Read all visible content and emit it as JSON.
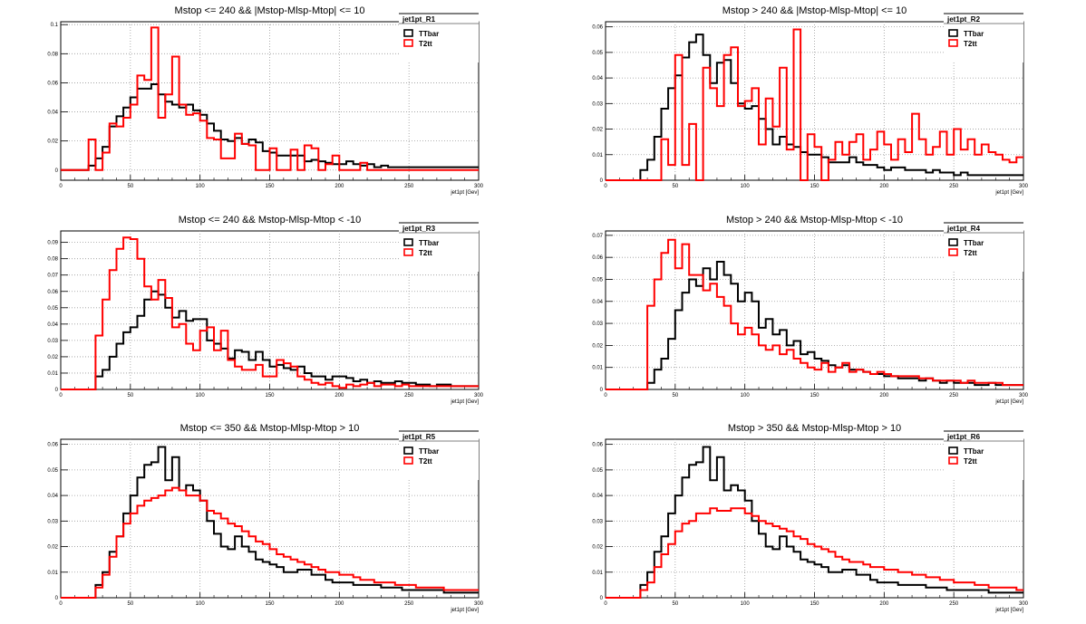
{
  "figure": {
    "colors": {
      "ttbar": "#000000",
      "t2tt": "#ff0000",
      "grid": "#9a9a9a"
    }
  },
  "chart_data": [
    {
      "type": "line",
      "title": "Mstop <= 240 && |Mstop-Mlsp-Mtop| <= 10",
      "xlabel": "jet1pt [Gev]",
      "ylabel": "",
      "legend_title": "jet1pt_R1",
      "legend": "top-right",
      "grid": true,
      "xlim": [
        0,
        300
      ],
      "ylim": [
        -0.007,
        0.102
      ],
      "xticks": [
        "0",
        "50",
        "100",
        "150",
        "200",
        "250",
        "300"
      ],
      "yticks": [
        "0",
        "0.02",
        "0.04",
        "0.06",
        "0.08",
        "0.1"
      ],
      "bin_edges_start": 0,
      "bin_width": 5,
      "series": [
        {
          "name": "TTbar",
          "color": "#000000",
          "values": [
            0,
            0,
            0,
            0,
            0.003,
            0.008,
            0.016,
            0.03,
            0.037,
            0.043,
            0.05,
            0.056,
            0.056,
            0.059,
            0.052,
            0.047,
            0.045,
            0.043,
            0.045,
            0.041,
            0.038,
            0.032,
            0.027,
            0.021,
            0.02,
            0.022,
            0.018,
            0.021,
            0.019,
            0.013,
            0.012,
            0.01,
            0.01,
            0.01,
            0.01,
            0.006,
            0.007,
            0.006,
            0.005,
            0.004,
            0.004,
            0.006,
            0.004,
            0.003,
            0.004,
            0.002,
            0.003,
            0.002,
            0.002,
            0.002,
            0.002,
            0.002,
            0.002,
            0.002,
            0.002,
            0.002,
            0.002,
            0.002,
            0.002,
            0.002
          ]
        },
        {
          "name": "T2tt",
          "color": "#ff0000",
          "values": [
            0,
            0,
            0,
            0,
            0.021,
            0,
            0.012,
            0.032,
            0.03,
            0.036,
            0.045,
            0.065,
            0.062,
            0.098,
            0.036,
            0.052,
            0.078,
            0.045,
            0.038,
            0.039,
            0.034,
            0.022,
            0.021,
            0.008,
            0.008,
            0.025,
            0.018,
            0.017,
            0,
            0,
            0.015,
            0,
            0,
            0.014,
            0,
            0.017,
            0.015,
            0,
            0.004,
            0.01,
            0,
            0,
            0,
            0.005,
            0,
            0,
            0,
            0,
            0,
            0,
            0,
            0,
            0,
            0,
            0,
            0,
            0,
            0,
            0,
            0
          ]
        }
      ]
    },
    {
      "type": "line",
      "title": "Mstop > 240 && |Mstop-Mlsp-Mtop| <= 10",
      "xlabel": "jet1pt [Gev]",
      "ylabel": "",
      "legend_title": "jet1pt_R2",
      "legend": "top-right",
      "grid": true,
      "xlim": [
        0,
        300
      ],
      "ylim": [
        0,
        0.062
      ],
      "xticks": [
        "0",
        "50",
        "100",
        "150",
        "200",
        "250",
        "300"
      ],
      "yticks": [
        "0",
        "0.01",
        "0.02",
        "0.03",
        "0.04",
        "0.05",
        "0.06"
      ],
      "bin_edges_start": 0,
      "bin_width": 5,
      "series": [
        {
          "name": "TTbar",
          "color": "#000000",
          "values": [
            0,
            0,
            0,
            0,
            0,
            0.004,
            0.008,
            0.017,
            0.028,
            0.036,
            0.041,
            0.048,
            0.054,
            0.057,
            0.049,
            0.038,
            0.046,
            0.047,
            0.038,
            0.03,
            0.028,
            0.029,
            0.024,
            0.02,
            0.014,
            0.017,
            0.014,
            0.013,
            0.011,
            0.01,
            0.01,
            0.009,
            0.007,
            0.007,
            0.007,
            0.009,
            0.007,
            0.006,
            0.006,
            0.005,
            0.004,
            0.005,
            0.005,
            0.004,
            0.004,
            0.004,
            0.003,
            0.004,
            0.003,
            0.003,
            0.002,
            0.003,
            0.002,
            0.002,
            0.002,
            0.002,
            0.002,
            0.002,
            0.002,
            0.002
          ]
        },
        {
          "name": "T2tt",
          "color": "#ff0000",
          "values": [
            0,
            0,
            0,
            0,
            0,
            0,
            0,
            0,
            0.016,
            0.006,
            0.049,
            0.006,
            0.022,
            0,
            0.044,
            0.036,
            0.029,
            0.049,
            0.052,
            0.029,
            0.031,
            0.036,
            0.014,
            0.032,
            0.021,
            0.044,
            0.012,
            0.059,
            0,
            0.018,
            0.013,
            0,
            0.008,
            0.015,
            0.01,
            0.015,
            0.018,
            0.008,
            0.012,
            0.019,
            0.014,
            0.008,
            0.016,
            0.011,
            0.026,
            0.016,
            0.01,
            0.013,
            0.019,
            0.01,
            0.02,
            0.012,
            0.016,
            0.01,
            0.014,
            0.011,
            0.01,
            0.008,
            0.007,
            0.009
          ]
        }
      ]
    },
    {
      "type": "line",
      "title": "Mstop <= 240 && Mstop-Mlsp-Mtop < -10",
      "xlabel": "jet1pt [Gev]",
      "ylabel": "",
      "legend_title": "jet1pt_R3",
      "legend": "top-right",
      "grid": true,
      "xlim": [
        0,
        300
      ],
      "ylim": [
        0,
        0.097
      ],
      "xticks": [
        "0",
        "50",
        "100",
        "150",
        "200",
        "250",
        "300"
      ],
      "yticks": [
        "0",
        "0.01",
        "0.02",
        "0.03",
        "0.04",
        "0.05",
        "0.06",
        "0.07",
        "0.08",
        "0.09"
      ],
      "bin_edges_start": 0,
      "bin_width": 5,
      "series": [
        {
          "name": "TTbar",
          "color": "#000000",
          "values": [
            0,
            0,
            0,
            0,
            0,
            0.008,
            0.012,
            0.02,
            0.028,
            0.035,
            0.038,
            0.045,
            0.055,
            0.06,
            0.058,
            0.05,
            0.044,
            0.048,
            0.042,
            0.043,
            0.043,
            0.03,
            0.028,
            0.025,
            0.019,
            0.024,
            0.023,
            0.018,
            0.023,
            0.018,
            0.014,
            0.015,
            0.013,
            0.012,
            0.014,
            0.01,
            0.008,
            0.008,
            0.006,
            0.008,
            0.008,
            0.007,
            0.005,
            0.006,
            0.004,
            0.005,
            0.004,
            0.004,
            0.005,
            0.004,
            0.004,
            0.003,
            0.003,
            0.002,
            0.003,
            0.003,
            0.002,
            0.002,
            0.002,
            0.002
          ]
        },
        {
          "name": "T2tt",
          "color": "#ff0000",
          "values": [
            0,
            0,
            0,
            0,
            0,
            0.033,
            0.055,
            0.073,
            0.086,
            0.093,
            0.092,
            0.08,
            0.063,
            0.055,
            0.067,
            0.056,
            0.038,
            0.04,
            0.028,
            0.024,
            0.036,
            0.038,
            0.024,
            0.036,
            0.018,
            0.014,
            0.012,
            0.012,
            0.015,
            0.008,
            0.008,
            0.018,
            0.016,
            0.014,
            0.008,
            0.006,
            0.004,
            0.003,
            0.004,
            0.002,
            0.001,
            0.003,
            0.002,
            0.003,
            0.004,
            0.002,
            0.003,
            0.003,
            0.002,
            0.003,
            0.002,
            0.002,
            0.002,
            0.002,
            0.002,
            0.002,
            0.002,
            0.002,
            0.002,
            0.002
          ]
        }
      ]
    },
    {
      "type": "line",
      "title": "Mstop > 240 && Mstop-Mlsp-Mtop < -10",
      "xlabel": "jet1pt [Gev]",
      "ylabel": "",
      "legend_title": "jet1pt_R4",
      "legend": "top-right",
      "grid": true,
      "xlim": [
        0,
        300
      ],
      "ylim": [
        0,
        0.072
      ],
      "xticks": [
        "0",
        "50",
        "100",
        "150",
        "200",
        "250",
        "300"
      ],
      "yticks": [
        "0",
        "0.01",
        "0.02",
        "0.03",
        "0.04",
        "0.05",
        "0.06",
        "0.07"
      ],
      "bin_edges_start": 0,
      "bin_width": 5,
      "series": [
        {
          "name": "TTbar",
          "color": "#000000",
          "values": [
            0,
            0,
            0,
            0,
            0,
            0,
            0.003,
            0.009,
            0.014,
            0.023,
            0.036,
            0.044,
            0.05,
            0.047,
            0.055,
            0.05,
            0.058,
            0.052,
            0.048,
            0.04,
            0.044,
            0.04,
            0.028,
            0.032,
            0.025,
            0.027,
            0.02,
            0.022,
            0.016,
            0.017,
            0.014,
            0.013,
            0.011,
            0.01,
            0.011,
            0.009,
            0.009,
            0.008,
            0.007,
            0.007,
            0.006,
            0.006,
            0.005,
            0.005,
            0.005,
            0.004,
            0.005,
            0.004,
            0.003,
            0.004,
            0.003,
            0.003,
            0.003,
            0.002,
            0.002,
            0.003,
            0.002,
            0.002,
            0.002,
            0.002
          ]
        },
        {
          "name": "T2tt",
          "color": "#ff0000",
          "values": [
            0,
            0,
            0,
            0,
            0,
            0,
            0.038,
            0.05,
            0.062,
            0.068,
            0.055,
            0.066,
            0.052,
            0.052,
            0.045,
            0.048,
            0.042,
            0.038,
            0.03,
            0.025,
            0.028,
            0.025,
            0.02,
            0.018,
            0.02,
            0.016,
            0.018,
            0.014,
            0.012,
            0.01,
            0.009,
            0.012,
            0.008,
            0.01,
            0.012,
            0.008,
            0.009,
            0.008,
            0.007,
            0.008,
            0.007,
            0.006,
            0.006,
            0.006,
            0.006,
            0.005,
            0.005,
            0.004,
            0.004,
            0.004,
            0.004,
            0.003,
            0.004,
            0.003,
            0.003,
            0.003,
            0.003,
            0.002,
            0.002,
            0.002
          ]
        }
      ]
    },
    {
      "type": "line",
      "title": "Mstop <= 350 && Mstop-Mlsp-Mtop > 10",
      "xlabel": "jet1pt [Gev]",
      "ylabel": "",
      "legend_title": "jet1pt_R5",
      "legend": "top-right",
      "grid": true,
      "xlim": [
        0,
        300
      ],
      "ylim": [
        0,
        0.062
      ],
      "xticks": [
        "0",
        "50",
        "100",
        "150",
        "200",
        "250",
        "300"
      ],
      "yticks": [
        "0",
        "0.01",
        "0.02",
        "0.03",
        "0.04",
        "0.05",
        "0.06"
      ],
      "bin_edges_start": 0,
      "bin_width": 5,
      "series": [
        {
          "name": "TTbar",
          "color": "#000000",
          "values": [
            0,
            0,
            0,
            0,
            0,
            0.005,
            0.01,
            0.018,
            0.024,
            0.033,
            0.04,
            0.047,
            0.052,
            0.053,
            0.059,
            0.046,
            0.055,
            0.042,
            0.044,
            0.042,
            0.038,
            0.03,
            0.025,
            0.02,
            0.019,
            0.024,
            0.02,
            0.018,
            0.015,
            0.014,
            0.013,
            0.012,
            0.01,
            0.01,
            0.011,
            0.011,
            0.009,
            0.009,
            0.007,
            0.006,
            0.006,
            0.006,
            0.005,
            0.005,
            0.005,
            0.005,
            0.004,
            0.004,
            0.004,
            0.003,
            0.003,
            0.003,
            0.003,
            0.003,
            0.003,
            0.002,
            0.002,
            0.002,
            0.002,
            0.002
          ]
        },
        {
          "name": "T2tt",
          "color": "#ff0000",
          "values": [
            0,
            0,
            0,
            0,
            0,
            0.004,
            0.009,
            0.016,
            0.024,
            0.029,
            0.033,
            0.036,
            0.038,
            0.039,
            0.04,
            0.042,
            0.043,
            0.042,
            0.04,
            0.04,
            0.038,
            0.034,
            0.033,
            0.031,
            0.029,
            0.028,
            0.026,
            0.024,
            0.022,
            0.021,
            0.019,
            0.017,
            0.016,
            0.015,
            0.014,
            0.013,
            0.012,
            0.011,
            0.01,
            0.01,
            0.009,
            0.009,
            0.008,
            0.007,
            0.007,
            0.006,
            0.006,
            0.006,
            0.005,
            0.005,
            0.005,
            0.004,
            0.004,
            0.004,
            0.004,
            0.003,
            0.003,
            0.003,
            0.003,
            0.003
          ]
        }
      ]
    },
    {
      "type": "line",
      "title": "Mstop > 350 && Mstop-Mlsp-Mtop > 10",
      "xlabel": "jet1pt [Gev]",
      "ylabel": "",
      "legend_title": "jet1pt_R6",
      "legend": "top-right",
      "grid": true,
      "xlim": [
        0,
        300
      ],
      "ylim": [
        0,
        0.062
      ],
      "xticks": [
        "0",
        "50",
        "100",
        "150",
        "200",
        "250",
        "300"
      ],
      "yticks": [
        "0",
        "0.01",
        "0.02",
        "0.03",
        "0.04",
        "0.05",
        "0.06"
      ],
      "bin_edges_start": 0,
      "bin_width": 5,
      "series": [
        {
          "name": "TTbar",
          "color": "#000000",
          "values": [
            0,
            0,
            0,
            0,
            0,
            0.005,
            0.01,
            0.018,
            0.024,
            0.033,
            0.04,
            0.047,
            0.052,
            0.053,
            0.059,
            0.046,
            0.055,
            0.042,
            0.044,
            0.042,
            0.038,
            0.03,
            0.025,
            0.02,
            0.019,
            0.024,
            0.02,
            0.018,
            0.015,
            0.014,
            0.013,
            0.012,
            0.01,
            0.01,
            0.011,
            0.011,
            0.009,
            0.009,
            0.007,
            0.006,
            0.006,
            0.006,
            0.005,
            0.005,
            0.005,
            0.005,
            0.004,
            0.004,
            0.004,
            0.003,
            0.003,
            0.003,
            0.003,
            0.003,
            0.003,
            0.002,
            0.002,
            0.002,
            0.002,
            0.002
          ]
        },
        {
          "name": "T2tt",
          "color": "#ff0000",
          "values": [
            0,
            0,
            0,
            0,
            0,
            0.003,
            0.006,
            0.012,
            0.017,
            0.021,
            0.026,
            0.029,
            0.03,
            0.033,
            0.033,
            0.035,
            0.034,
            0.034,
            0.035,
            0.035,
            0.033,
            0.032,
            0.03,
            0.029,
            0.028,
            0.027,
            0.026,
            0.024,
            0.023,
            0.021,
            0.02,
            0.019,
            0.018,
            0.016,
            0.015,
            0.014,
            0.014,
            0.013,
            0.012,
            0.012,
            0.011,
            0.011,
            0.01,
            0.01,
            0.009,
            0.009,
            0.008,
            0.008,
            0.007,
            0.007,
            0.006,
            0.006,
            0.006,
            0.005,
            0.005,
            0.004,
            0.004,
            0.004,
            0.004,
            0.003
          ]
        }
      ]
    }
  ]
}
